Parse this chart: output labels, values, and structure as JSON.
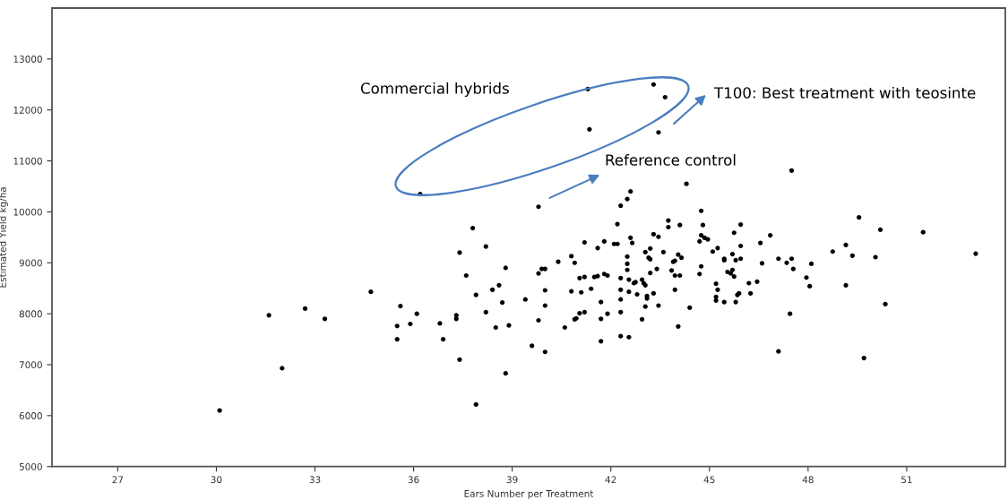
{
  "chart_data": {
    "type": "scatter",
    "xlabel": "Ears Number per Treatment",
    "ylabel": "Estimated Yield kg/ha",
    "xlim": [
      25,
      54
    ],
    "xticks": [
      27,
      30,
      33,
      36,
      39,
      42,
      45,
      48,
      51
    ],
    "ylim": [
      5000,
      14000
    ],
    "yticks": [
      5000,
      6000,
      7000,
      8000,
      9000,
      10000,
      11000,
      12000,
      13000
    ],
    "grid": false,
    "marker": "circle",
    "series": [
      {
        "color": "#000000",
        "x": [
          30.1,
          31.6,
          32.0,
          32.7,
          33.3,
          34.7,
          35.5,
          35.5,
          35.6,
          35.9,
          36.1,
          36.2,
          36.8,
          36.9,
          37.3,
          37.3,
          37.4,
          37.4,
          37.6,
          37.8,
          37.9,
          37.9,
          38.2,
          38.2,
          38.4,
          38.5,
          38.6,
          38.7,
          38.8,
          38.8,
          38.9,
          39.8,
          39.4,
          39.6,
          39.8,
          39.9,
          40.0,
          40.0,
          40.0,
          39.8,
          40.0,
          40.4,
          40.6,
          40.8,
          40.9,
          40.8,
          41.1,
          41.05,
          40.9,
          40.95,
          41.2,
          41.05,
          41.2,
          41.2,
          41.4,
          41.5,
          41.6,
          41.8,
          41.9,
          41.6,
          41.8,
          41.7,
          41.7,
          41.9,
          41.7,
          42.1,
          42.2,
          42.2,
          42.3,
          42.5,
          42.6,
          42.6,
          42.65,
          42.5,
          42.5,
          42.5,
          42.3,
          42.3,
          42.3,
          42.3,
          42.3,
          42.55,
          42.55,
          42.55,
          42.7,
          42.75,
          42.8,
          42.95,
          43.0,
          43.05,
          43.1,
          43.1,
          43.05,
          42.95,
          43.05,
          43.2,
          43.15,
          43.2,
          43.3,
          43.45,
          43.3,
          43.2,
          43.4,
          43.45,
          43.6,
          43.75,
          43.75,
          43.85,
          43.9,
          43.95,
          43.95,
          44.05,
          44.15,
          44.1,
          43.95,
          44.1,
          44.05,
          44.4,
          44.3,
          44.75,
          44.8,
          44.75,
          44.85,
          44.95,
          44.7,
          44.75,
          44.7,
          45.1,
          45.25,
          45.45,
          45.45,
          45.2,
          45.25,
          45.2,
          45.2,
          45.45,
          45.75,
          45.95,
          45.7,
          45.8,
          45.95,
          45.55,
          45.7,
          45.65,
          45.75,
          45.95,
          45.9,
          45.85,
          45.8,
          47.5,
          46.85,
          46.55,
          46.6,
          47.1,
          47.35,
          47.5,
          47.55,
          46.2,
          46.45,
          46.25,
          48.1,
          47.95,
          48.05,
          47.45,
          47.1,
          48.75,
          49.15,
          49.35,
          49.15,
          49.55,
          50.2,
          50.05,
          50.35,
          49.7,
          51.5,
          53.1,
          41.3,
          43.3,
          43.65,
          41.35,
          43.45
        ],
        "values": [
          6100,
          7970,
          6930,
          8100,
          7900,
          8430,
          7500,
          7760,
          8150,
          7800,
          8000,
          10350,
          7810,
          7500,
          7970,
          7900,
          9200,
          7100,
          8750,
          9680,
          6220,
          8370,
          9320,
          8030,
          8470,
          7730,
          8560,
          8220,
          8900,
          6830,
          7770,
          10100,
          8280,
          7370,
          8790,
          8880,
          8880,
          8460,
          8160,
          7870,
          7250,
          9020,
          7730,
          9130,
          9000,
          8440,
          8420,
          8010,
          7890,
          7910,
          8030,
          8700,
          8720,
          9400,
          8490,
          8720,
          8740,
          8780,
          8750,
          9290,
          9420,
          8230,
          7900,
          8000,
          7460,
          9370,
          9370,
          9760,
          10120,
          10250,
          10400,
          9490,
          9390,
          9120,
          8980,
          8860,
          8700,
          8470,
          8280,
          8030,
          7560,
          7540,
          8670,
          8430,
          8600,
          8620,
          8380,
          8670,
          8600,
          8560,
          8300,
          8350,
          8140,
          7890,
          9210,
          9280,
          9100,
          9070,
          9560,
          9510,
          8400,
          8800,
          8880,
          8160,
          9210,
          9830,
          9700,
          8850,
          9020,
          9040,
          8750,
          9160,
          9100,
          9740,
          8470,
          8750,
          7750,
          8120,
          10550,
          10020,
          9740,
          9540,
          9490,
          9460,
          9420,
          8930,
          8780,
          9220,
          9290,
          9080,
          9050,
          8590,
          8470,
          8330,
          8260,
          8230,
          9590,
          9750,
          9170,
          9050,
          9330,
          8820,
          8860,
          8790,
          8730,
          9080,
          8400,
          8370,
          8230,
          10810,
          9540,
          9390,
          8990,
          9080,
          9000,
          9080,
          8880,
          8600,
          8630,
          8400,
          8980,
          8710,
          8540,
          8000,
          7260,
          9220,
          9350,
          9140,
          8560,
          9890,
          9650,
          9110,
          8190,
          7130,
          9600,
          9180,
          12410,
          12500,
          12250,
          11620,
          11560
        ]
      }
    ],
    "annotations": [
      "Commercial hybrids",
      "T100: Best treatment with teosinte",
      "Reference control"
    ]
  }
}
